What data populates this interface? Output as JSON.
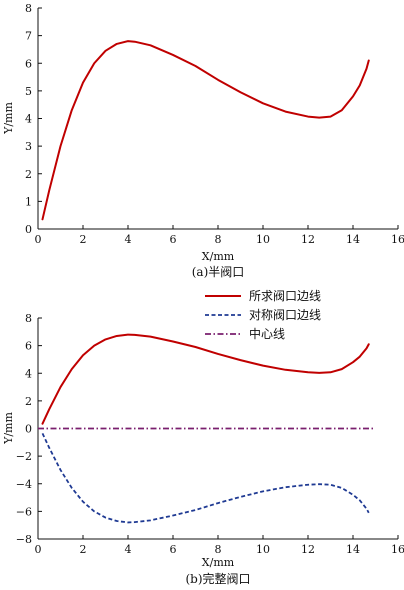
{
  "chart_data": [
    {
      "type": "line",
      "caption": "(a)半阀口",
      "xlabel": "X/mm",
      "ylabel": "Y/mm",
      "xlim": [
        0,
        16
      ],
      "ylim": [
        0,
        8
      ],
      "xticks": [
        "0",
        "2",
        "4",
        "6",
        "8",
        "10",
        "12",
        "14",
        "16"
      ],
      "yticks": [
        "0",
        "1",
        "2",
        "3",
        "4",
        "5",
        "6",
        "7",
        "8"
      ],
      "grid": false,
      "legend": null,
      "series": [
        {
          "color": "#c00000",
          "dash": "solid",
          "x": [
            0.2,
            0.5,
            1.0,
            1.5,
            2.0,
            2.5,
            3.0,
            3.5,
            4.0,
            4.3,
            5.0,
            6.0,
            7.0,
            8.0,
            9.0,
            10.0,
            11.0,
            12.0,
            12.5,
            13.0,
            13.5,
            14.0,
            14.3,
            14.6,
            14.7
          ],
          "y": [
            0.35,
            1.4,
            3.0,
            4.3,
            5.3,
            6.0,
            6.45,
            6.7,
            6.8,
            6.78,
            6.65,
            6.3,
            5.9,
            5.4,
            4.95,
            4.55,
            4.25,
            4.07,
            4.03,
            4.07,
            4.3,
            4.8,
            5.2,
            5.8,
            6.1
          ]
        }
      ]
    },
    {
      "type": "line",
      "caption": "(b)完整阀口",
      "xlabel": "X/mm",
      "ylabel": "Y/mm",
      "xlim": [
        0,
        16
      ],
      "ylim": [
        -8,
        8
      ],
      "xticks": [
        "0",
        "2",
        "4",
        "6",
        "8",
        "10",
        "12",
        "14",
        "16"
      ],
      "yticks": [
        "-8",
        "-6",
        "-4",
        "-2",
        "0",
        "2",
        "4",
        "6",
        "8"
      ],
      "grid": false,
      "legend": "top-right",
      "series": [
        {
          "name": "所求阀口边线",
          "color": "#c00000",
          "dash": "solid",
          "x": [
            0.2,
            0.5,
            1.0,
            1.5,
            2.0,
            2.5,
            3.0,
            3.5,
            4.0,
            4.3,
            5.0,
            6.0,
            7.0,
            8.0,
            9.0,
            10.0,
            11.0,
            12.0,
            12.5,
            13.0,
            13.5,
            14.0,
            14.3,
            14.6,
            14.7
          ],
          "y": [
            0.35,
            1.4,
            3.0,
            4.3,
            5.3,
            6.0,
            6.45,
            6.7,
            6.8,
            6.78,
            6.65,
            6.3,
            5.9,
            5.4,
            4.95,
            4.55,
            4.25,
            4.07,
            4.03,
            4.07,
            4.3,
            4.8,
            5.2,
            5.8,
            6.1
          ]
        },
        {
          "name": "对称阀口边线",
          "color": "#1f3a93",
          "dash": "dashed",
          "x": [
            0.2,
            0.5,
            1.0,
            1.5,
            2.0,
            2.5,
            3.0,
            3.5,
            4.0,
            4.3,
            5.0,
            6.0,
            7.0,
            8.0,
            9.0,
            10.0,
            11.0,
            12.0,
            12.5,
            13.0,
            13.5,
            14.0,
            14.3,
            14.6,
            14.7
          ],
          "y": [
            -0.35,
            -1.4,
            -3.0,
            -4.3,
            -5.3,
            -6.0,
            -6.45,
            -6.7,
            -6.8,
            -6.78,
            -6.65,
            -6.3,
            -5.9,
            -5.4,
            -4.95,
            -4.55,
            -4.25,
            -4.07,
            -4.03,
            -4.07,
            -4.3,
            -4.8,
            -5.2,
            -5.8,
            -6.1
          ]
        },
        {
          "name": "中心线",
          "color": "#7a1f6e",
          "dash": "dashdot",
          "x": [
            0.0,
            15.0
          ],
          "y": [
            0.0,
            0.0
          ]
        }
      ]
    }
  ]
}
